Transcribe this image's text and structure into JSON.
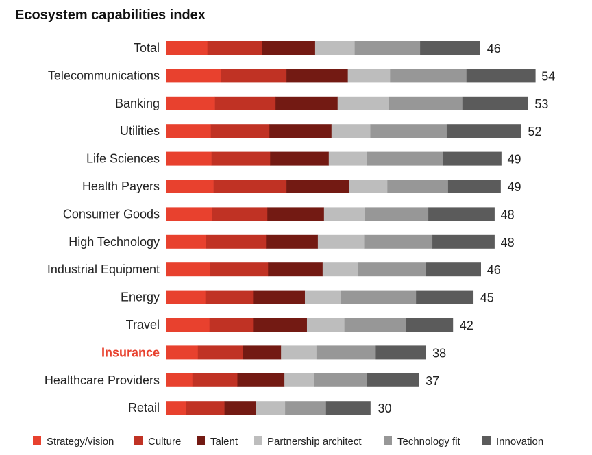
{
  "chart_data": {
    "type": "bar",
    "orientation": "horizontal",
    "stacked": true,
    "title": "Ecosystem capabilities index",
    "xlabel": "",
    "ylabel": "",
    "grid": false,
    "legend_position": "bottom",
    "highlight_category": "Insurance",
    "highlight_color": "#e8412e",
    "categories": [
      "Total",
      "Telecommunications",
      "Banking",
      "Utilities",
      "Life Sciences",
      "Health Payers",
      "Consumer Goods",
      "High Technology",
      "Industrial Equipment",
      "Energy",
      "Travel",
      "Insurance",
      "Healthcare Providers",
      "Retail"
    ],
    "totals": [
      46,
      54,
      53,
      52,
      49,
      49,
      48,
      48,
      46,
      45,
      42,
      38,
      37,
      30
    ],
    "series": [
      {
        "name": "Strategy/vision",
        "color": "#e8412e",
        "values": [
          6.0,
          8.0,
          7.1,
          6.5,
          6.6,
          6.9,
          6.7,
          5.8,
          6.4,
          5.7,
          6.3,
          4.6,
          3.8,
          2.9
        ]
      },
      {
        "name": "Culture",
        "color": "#c03224",
        "values": [
          8.0,
          9.6,
          8.9,
          8.6,
          8.6,
          10.7,
          8.1,
          8.8,
          8.5,
          7.0,
          6.4,
          6.6,
          6.6,
          5.6
        ]
      },
      {
        "name": "Talent",
        "color": "#731a13",
        "values": [
          7.8,
          9.0,
          9.1,
          9.1,
          8.6,
          9.2,
          8.3,
          7.6,
          8.0,
          7.6,
          7.9,
          5.6,
          6.9,
          4.6
        ]
      },
      {
        "name": "Partnership architect",
        "color": "#bdbdbd",
        "values": [
          5.8,
          6.2,
          7.5,
          5.7,
          5.6,
          5.6,
          6.0,
          6.8,
          5.2,
          5.3,
          5.5,
          5.2,
          4.4,
          4.3
        ]
      },
      {
        "name": "Technology fit",
        "color": "#979797",
        "values": [
          9.6,
          11.2,
          10.8,
          11.2,
          11.2,
          8.9,
          9.3,
          10.0,
          9.9,
          11.0,
          9.0,
          8.7,
          7.7,
          6.0
        ]
      },
      {
        "name": "Innovation",
        "color": "#5b5b5b",
        "values": [
          8.8,
          10.1,
          9.6,
          10.9,
          8.5,
          7.7,
          9.7,
          9.1,
          8.1,
          8.4,
          6.9,
          7.3,
          7.6,
          6.5
        ]
      }
    ]
  }
}
